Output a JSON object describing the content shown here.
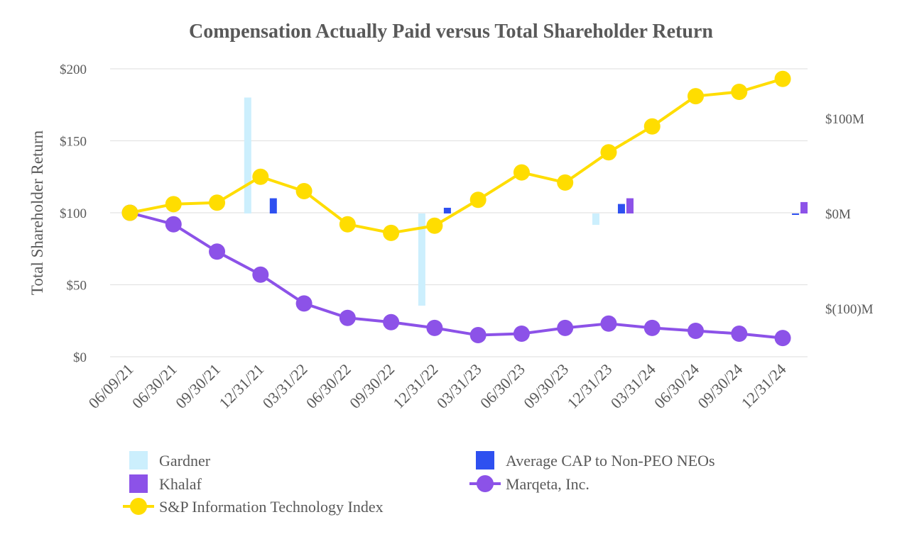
{
  "chart_data": {
    "type": "line+bar",
    "title": "Compensation Actually Paid versus Total Shareholder Return",
    "ylabel": "Total Shareholder Return",
    "y2label": "",
    "ylim": [
      0,
      200
    ],
    "y_ticks": [
      "$0",
      "$50",
      "$100",
      "$150",
      "$200"
    ],
    "y_tick_values": [
      0,
      50,
      100,
      150,
      200
    ],
    "y2lim": [
      -150,
      150
    ],
    "y2_ticks": [
      "$(100)M",
      "$0M",
      "$100M"
    ],
    "y2_tick_values": [
      -100,
      0,
      100
    ],
    "grid": true,
    "categories": [
      "06/09/21",
      "06/30/21",
      "09/30/21",
      "12/31/21",
      "03/31/22",
      "06/30/22",
      "09/30/22",
      "12/31/22",
      "03/31/23",
      "06/30/23",
      "09/30/23",
      "12/31/23",
      "03/31/24",
      "06/30/24",
      "09/30/24",
      "12/31/24"
    ],
    "line_series": [
      {
        "name": "Marqeta, Inc.",
        "color": "#8C52E8",
        "values": [
          100,
          92,
          73,
          57,
          37,
          27,
          24,
          20,
          15,
          16,
          20,
          23,
          20,
          18,
          16,
          13
        ]
      },
      {
        "name": "S&P Information Technology Index",
        "color": "#FFDD00",
        "values": [
          100,
          106,
          107,
          125,
          115,
          92,
          86,
          91,
          109,
          128,
          121,
          142,
          160,
          181,
          184,
          193
        ]
      }
    ],
    "bar_series": [
      {
        "name": "Gardner",
        "color": "#CCEFFD",
        "values": {
          "12/31/21": 122,
          "12/31/22": -97,
          "12/31/23": -12
        }
      },
      {
        "name": "Average CAP to Non-PEO NEOs",
        "color": "#2E50F0",
        "values": {
          "12/31/21": 16,
          "12/31/22": 6,
          "12/31/23": 10,
          "12/31/24": -1
        }
      },
      {
        "name": "Khalaf",
        "color": "#8C52E8",
        "values": {
          "12/31/23": 16,
          "12/31/24": 12
        }
      }
    ],
    "legend": [
      {
        "name": "Gardner",
        "kind": "bar",
        "color": "#CCEFFD"
      },
      {
        "name": "Average CAP to Non-PEO NEOs",
        "kind": "bar",
        "color": "#2E50F0"
      },
      {
        "name": "Khalaf",
        "kind": "bar",
        "color": "#8C52E8"
      },
      {
        "name": "Marqeta, Inc.",
        "kind": "line",
        "color": "#8C52E8"
      },
      {
        "name": "S&P Information Technology Index",
        "kind": "line",
        "color": "#FFDD00"
      }
    ],
    "legend_position": "bottom"
  }
}
